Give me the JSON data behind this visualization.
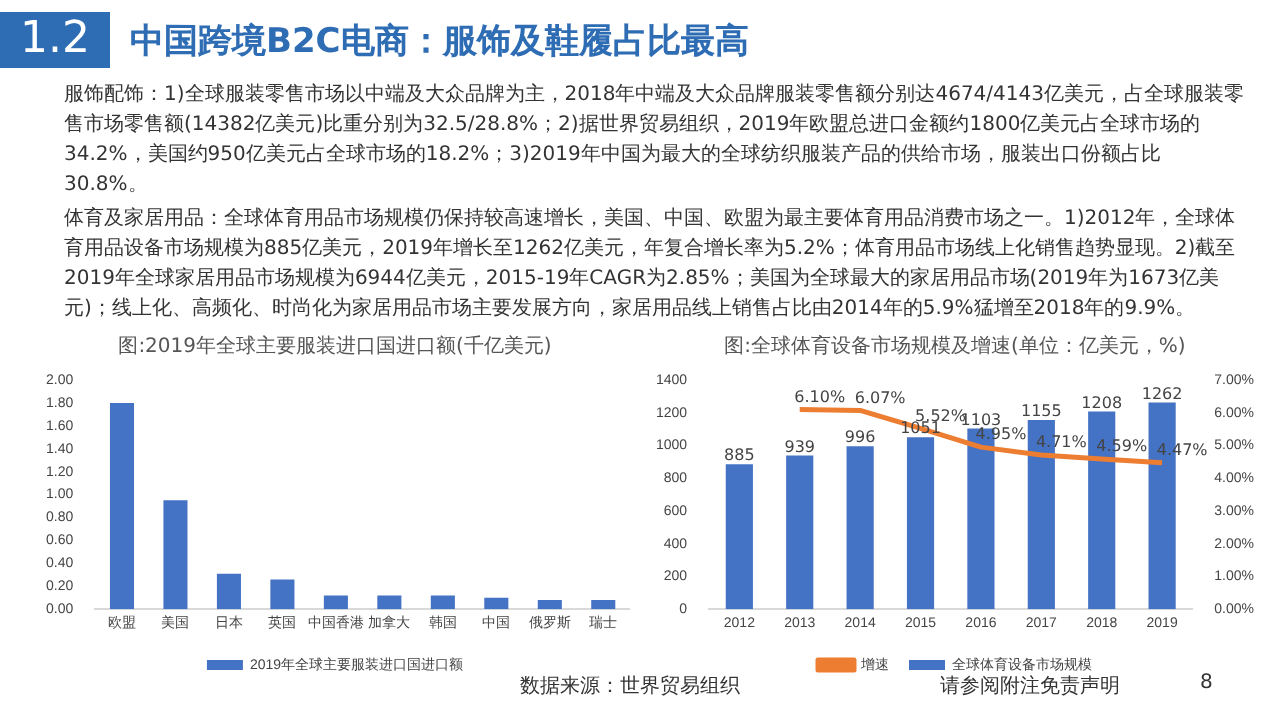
{
  "chart_data": [
    {
      "type": "bar",
      "title": "图:2019年全球主要服装进口国进口额(千亿美元)",
      "annotations": [
        "1.2",
        "中国跨境B2C电商：服饰及鞋履占比最高",
        "服饰配饰：1)全球服装零售市场以中端及大众品牌为主，2018年中端及大众品牌服装零售额分别达4674/4143亿美元，占全球服装零售市场零售额(14382亿美元)比重分别为32.5/28.8%；2)据世界贸易组织，2019年欧盟总进口金额约1800亿美元占全球市场的34.2%，美国约950亿美元占全球市场的18.2%；3)2019年中国为最大的全球纺织服装产品的供给市场，服装出口份额占比30.8%。",
        "体育及家居用品：全球体育用品市场规模仍保持较高速增长，美国、中国、欧盟为最主要体育用品消费市场之一。1)2012年，全球体育用品设备市场规模为885亿美元，2019年增长至1262亿美元，年复合增长率为5.2%；体育用品市场线上化销售趋势显现。2)截至2019年全球家居用品市场规模为6944亿美元，2015-19年CAGR为2.85%；美国为全球最大的家居用品市场(2019年为1673亿美元)；线上化、高频化、时尚化为家居用品市场主要发展方向，家居用品线上销售占比由2014年的5.9%猛增至2018年的9.9%。"
      ],
      "categories": [
        "欧盟",
        "美国",
        "日本",
        "英国",
        "中国香港",
        "加拿大",
        "韩国",
        "中国",
        "俄罗斯",
        "瑞士"
      ],
      "series": [
        {
          "name": "2019年全球主要服装进口国进口额",
          "color": "#4472c4",
          "values": [
            1.8,
            0.95,
            0.31,
            0.26,
            0.12,
            0.12,
            0.12,
            0.1,
            0.08,
            0.08
          ]
        }
      ],
      "ylim": [
        0,
        2
      ],
      "yticks": [
        {
          "value": 0,
          "label": "0.00"
        },
        {
          "value": 0.2,
          "label": "0.20"
        },
        {
          "value": 0.4,
          "label": "0.40"
        },
        {
          "value": 0.6,
          "label": "0.60"
        },
        {
          "value": 0.8,
          "label": "0.80"
        },
        {
          "value": 1,
          "label": "1.00"
        },
        {
          "value": 1.2,
          "label": "1.20"
        },
        {
          "value": 1.4,
          "label": "1.40"
        },
        {
          "value": 1.6,
          "label": "1.60"
        },
        {
          "value": 1.8,
          "label": "1.80"
        },
        {
          "value": 2,
          "label": "2.00"
        }
      ],
      "legend": "bottom"
    },
    {
      "type": "bar",
      "title": "图:全球体育设备市场规模及增速(单位：亿美元，%)",
      "annotations": [
        "数据来源：世界贸易组织",
        "请参阅附注免责声明",
        "8"
      ],
      "categories": [
        "2012",
        "2013",
        "2014",
        "2015",
        "2016",
        "2017",
        "2018",
        "2019"
      ],
      "series": [
        {
          "name": "全球体育设备市场规模",
          "color": "#4472c4",
          "values": [
            885,
            939,
            996,
            1051,
            1103,
            1155,
            1208,
            1262
          ],
          "value_labels": [
            "885",
            "939",
            "996",
            "1051",
            "1103",
            "1155",
            "1208",
            "1262"
          ]
        },
        {
          "name": "增速",
          "type": "line",
          "axis": "y2",
          "color": "#ed7d31",
          "values": [
            null,
            6.1,
            6.07,
            5.52,
            4.95,
            4.71,
            4.59,
            4.47
          ],
          "value_labels": [
            null,
            "6.10%",
            "6.07%",
            "5.52%",
            "4.95%",
            "4.71%",
            "4.59%",
            "4.47%"
          ]
        }
      ],
      "ylim": [
        0,
        1400
      ],
      "yticks": [
        0,
        200,
        400,
        600,
        800,
        1000,
        1200,
        1400
      ],
      "y2lim": [
        0,
        7
      ],
      "y2ticks": [
        {
          "value": 0,
          "label": "0.00%"
        },
        {
          "value": 1,
          "label": "1.00%"
        },
        {
          "value": 2,
          "label": "2.00%"
        },
        {
          "value": 3,
          "label": "3.00%"
        },
        {
          "value": 4,
          "label": "4.00%"
        },
        {
          "value": 5,
          "label": "5.00%"
        },
        {
          "value": 6,
          "label": "6.00%"
        },
        {
          "value": 7,
          "label": "7.00%"
        }
      ],
      "marker": "none",
      "legend": "bottom"
    }
  ]
}
